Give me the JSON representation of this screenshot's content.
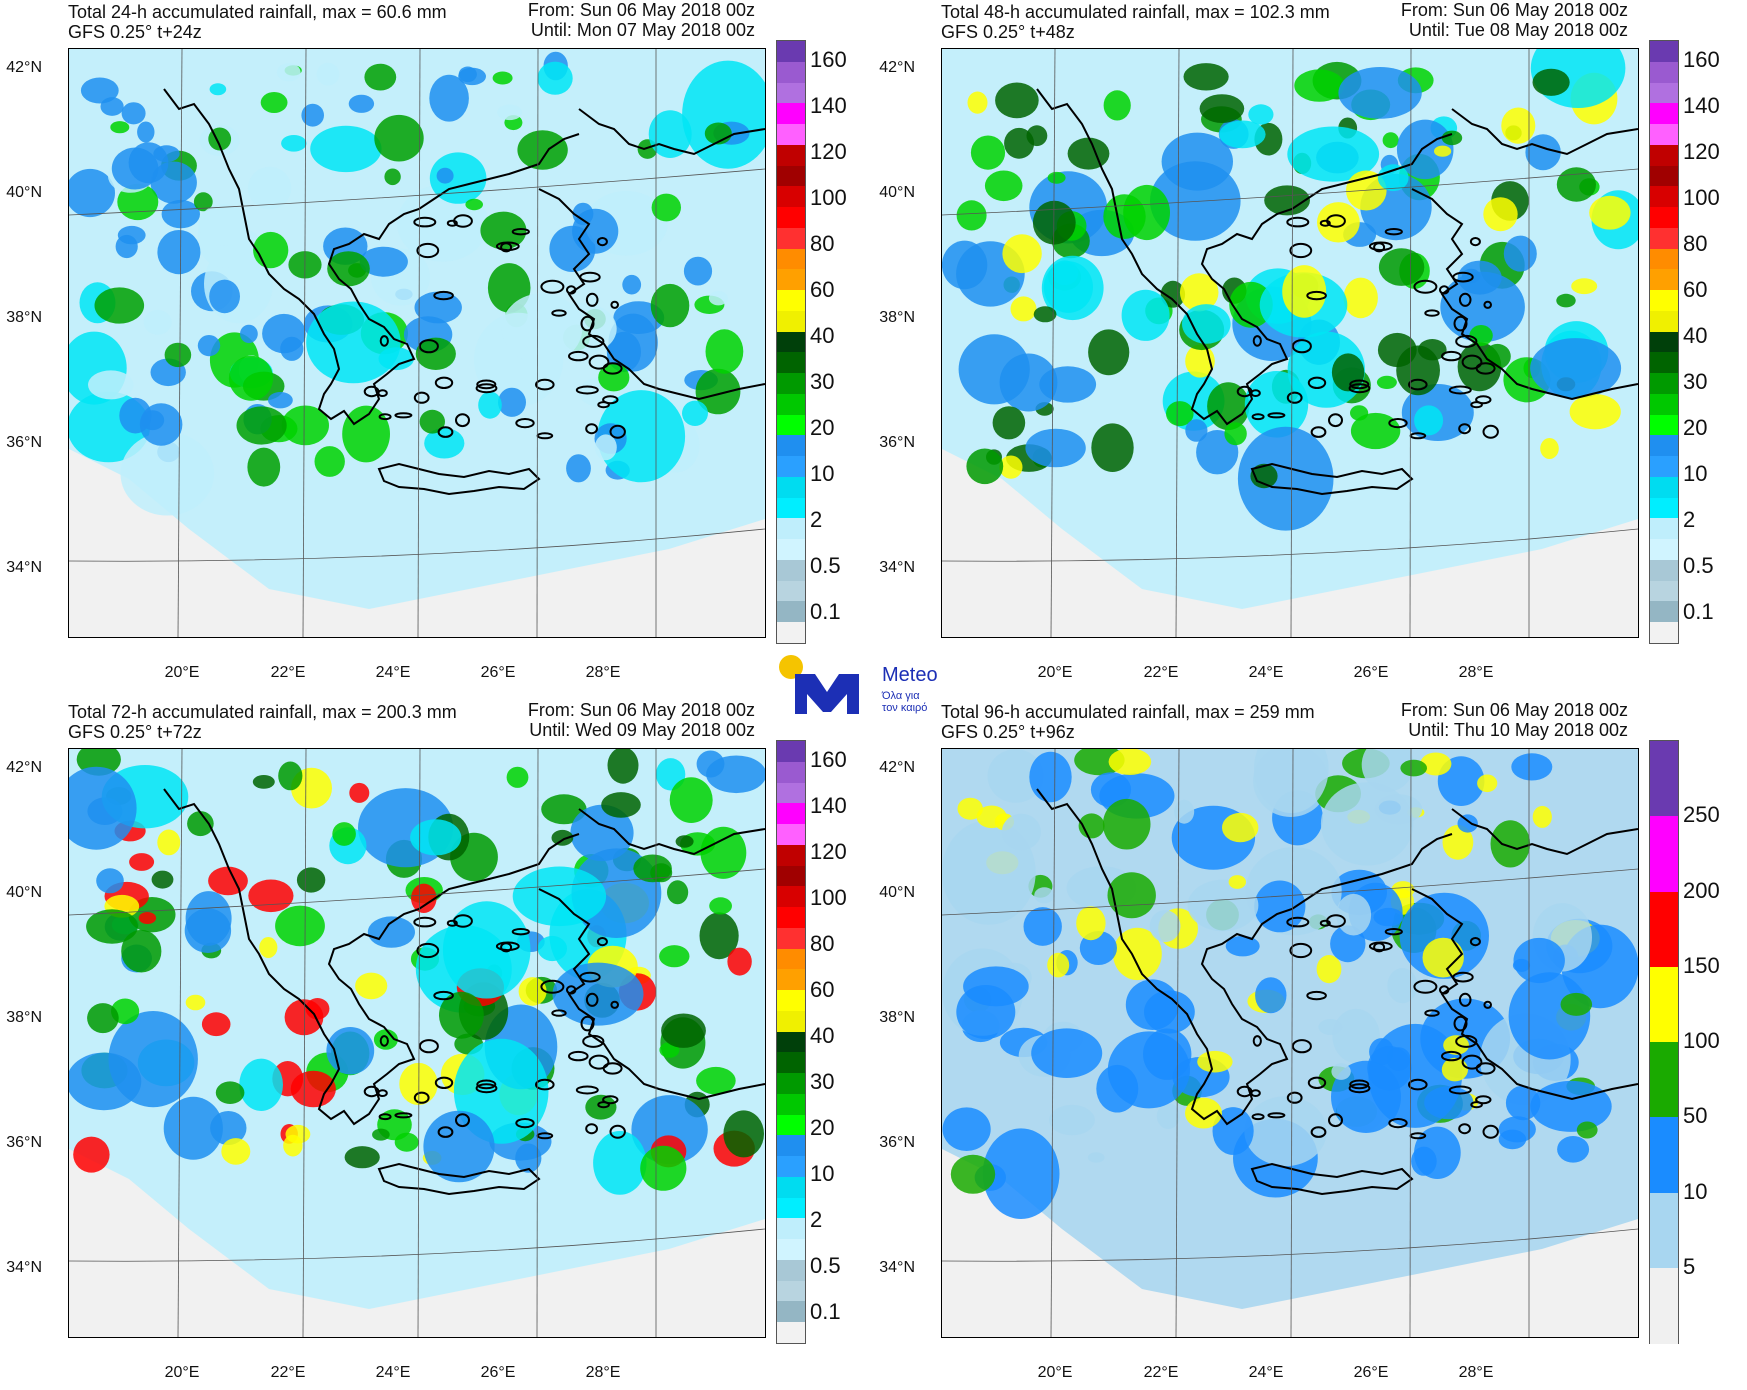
{
  "panels": [
    {
      "title": "Total 24-h accumulated rainfall, max = 60.6 mm",
      "subtitle": "GFS 0.25° t+24z",
      "from": "From: Sun 06 May 2018 00z",
      "until": "Until: Mon 07 May 2018 00z",
      "colorbar_labels": [
        "160",
        "140",
        "120",
        "100",
        "80",
        "60",
        "40",
        "30",
        "20",
        "10",
        "2",
        "0.5",
        "0.1"
      ]
    },
    {
      "title": "Total 48-h accumulated rainfall, max = 102.3 mm",
      "subtitle": "GFS 0.25° t+48z",
      "from": "From: Sun 06 May 2018 00z",
      "until": "Until: Tue 08 May 2018 00z",
      "colorbar_labels": [
        "160",
        "140",
        "120",
        "100",
        "80",
        "60",
        "40",
        "30",
        "20",
        "10",
        "2",
        "0.5",
        "0.1"
      ]
    },
    {
      "title": "Total 72-h accumulated rainfall, max = 200.3 mm",
      "subtitle": "GFS 0.25° t+72z",
      "from": "From: Sun 06 May 2018 00z",
      "until": "Until: Wed 09 May 2018 00z",
      "colorbar_labels": [
        "160",
        "140",
        "120",
        "100",
        "80",
        "60",
        "40",
        "30",
        "20",
        "10",
        "2",
        "0.5",
        "0.1"
      ]
    },
    {
      "title": "Total 96-h accumulated rainfall, max = 259 mm",
      "subtitle": "GFS 0.25° t+96z",
      "from": "From: Sun 06 May 2018 00z",
      "until": "Until: Thu 10 May 2018 00z",
      "colorbar_labels": [
        "250",
        "200",
        "150",
        "100",
        "50",
        "10",
        "5"
      ]
    }
  ],
  "lat_labels": [
    "42°N",
    "40°N",
    "38°N",
    "36°N",
    "34°N"
  ],
  "lon_labels": [
    "20°E",
    "22°E",
    "24°E",
    "26°E",
    "28°E"
  ],
  "colorbar_colors_main": [
    "#6a3ab0",
    "#9a5ad0",
    "#b070e0",
    "#ff00ff",
    "#ff60ff",
    "#c00000",
    "#a00000",
    "#d80000",
    "#ff0000",
    "#ff3030",
    "#ff8c00",
    "#ffa000",
    "#ffff00",
    "#f0f000",
    "#00400a",
    "#006400",
    "#009a00",
    "#00c800",
    "#00ff00",
    "#1f8ff0",
    "#2aa0ff",
    "#00dcf0",
    "#00eeff",
    "#bfeefc",
    "#d0f4ff",
    "#a8c8d6",
    "#b8d4e0",
    "#94b6c4",
    "#f2f2f2"
  ],
  "colorbar_colors_96": [
    "#6a3ab0",
    "#ff00ff",
    "#ff0000",
    "#ffff00",
    "#1aaa00",
    "#1a8cff",
    "#a8d6f0",
    "#f0f0f0"
  ],
  "logo": {
    "name": "Meteo",
    "tagline_1": "Όλα για",
    "tagline_2": "τον καιρό"
  }
}
